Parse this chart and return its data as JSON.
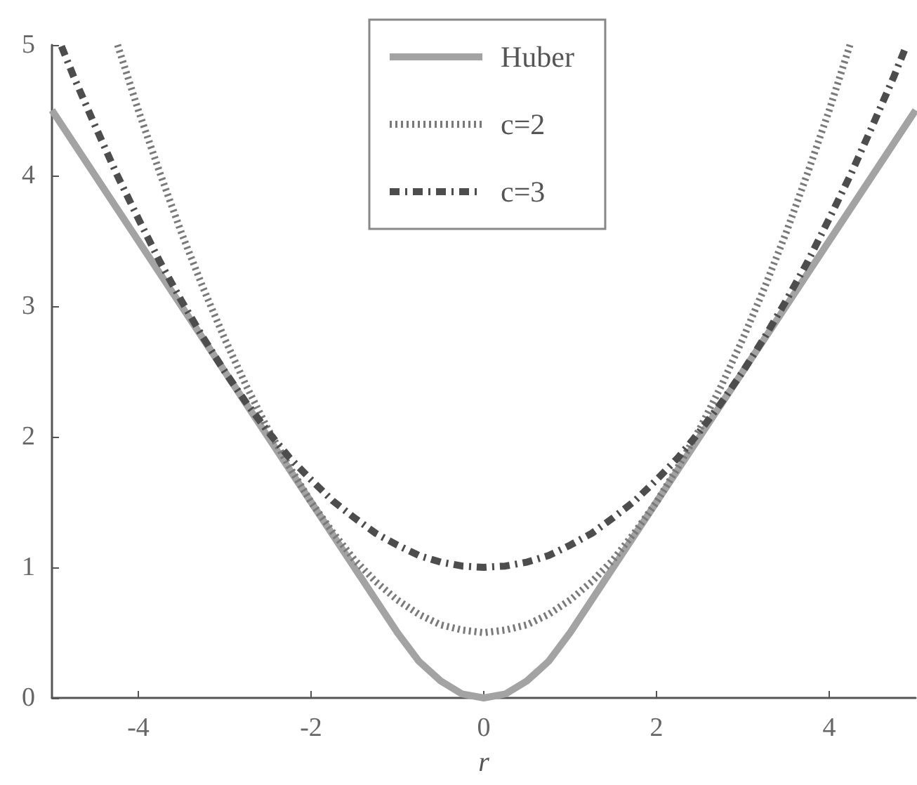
{
  "chart_data": {
    "type": "line",
    "xlabel": "r",
    "xlim": [
      -5,
      5
    ],
    "xticks": [
      -4,
      -2,
      0,
      2,
      4
    ],
    "ylim": [
      0,
      5
    ],
    "yticks": [
      0,
      1,
      2,
      3,
      4,
      5
    ],
    "legend": "top",
    "marker": "none",
    "series": [
      {
        "name": "Huber",
        "color": "#a3a3a3",
        "line_style": "solid",
        "x": [
          -5,
          -4.75,
          -4.5,
          -4.25,
          -4,
          -3.75,
          -3.5,
          -3.25,
          -3,
          -2.75,
          -2.5,
          -2.25,
          -2,
          -1.75,
          -1.5,
          -1.25,
          -1,
          -0.75,
          -0.5,
          -0.25,
          0,
          0.25,
          0.5,
          0.75,
          1,
          1.25,
          1.5,
          1.75,
          2,
          2.25,
          2.5,
          2.75,
          3,
          3.25,
          3.5,
          3.75,
          4,
          4.25,
          4.5,
          4.75,
          5
        ],
        "values": [
          4.5,
          4.25,
          4,
          3.75,
          3.5,
          3.25,
          3,
          2.75,
          2.5,
          2.25,
          2,
          1.75,
          1.5,
          1.25,
          1,
          0.75,
          0.5,
          0.28,
          0.13,
          0.03,
          0,
          0.03,
          0.13,
          0.28,
          0.5,
          0.75,
          1,
          1.25,
          1.5,
          1.75,
          2,
          2.25,
          2.5,
          2.75,
          3,
          3.25,
          3.5,
          3.75,
          4,
          4.25,
          4.5
        ]
      },
      {
        "name": "c=2",
        "color": "#7a7a7a",
        "line_style": "dotted",
        "x": [
          -4.24,
          -4,
          -3.75,
          -3.5,
          -3.25,
          -3,
          -2.75,
          -2.5,
          -2.25,
          -2,
          -1.75,
          -1.5,
          -1.25,
          -1,
          -0.75,
          -0.5,
          -0.25,
          0,
          0.25,
          0.5,
          0.75,
          1,
          1.25,
          1.5,
          1.75,
          2,
          2.25,
          2.5,
          2.75,
          3,
          3.25,
          3.5,
          3.75,
          4,
          4.24
        ],
        "values": [
          5,
          4.5,
          4.02,
          3.56,
          3.14,
          2.75,
          2.39,
          2.06,
          1.77,
          1.5,
          1.27,
          1.06,
          0.89,
          0.75,
          0.64,
          0.56,
          0.52,
          0.5,
          0.52,
          0.56,
          0.64,
          0.75,
          0.89,
          1.06,
          1.27,
          1.5,
          1.77,
          2.06,
          2.39,
          2.75,
          3.14,
          3.56,
          4.02,
          4.5,
          5
        ]
      },
      {
        "name": "c=3",
        "color": "#4d4d4d",
        "line_style": "dashdot",
        "x": [
          -4.89,
          -4.75,
          -4.5,
          -4.25,
          -4,
          -3.75,
          -3.5,
          -3.25,
          -3,
          -2.75,
          -2.5,
          -2.25,
          -2,
          -1.75,
          -1.5,
          -1.25,
          -1,
          -0.75,
          -0.5,
          -0.25,
          0,
          0.25,
          0.5,
          0.75,
          1,
          1.25,
          1.5,
          1.75,
          2,
          2.25,
          2.5,
          2.75,
          3,
          3.25,
          3.5,
          3.75,
          4,
          4.25,
          4.5,
          4.75,
          4.89
        ],
        "values": [
          4.99,
          4.76,
          4.38,
          4.01,
          3.67,
          3.34,
          3.04,
          2.76,
          2.5,
          2.26,
          2.04,
          1.84,
          1.67,
          1.51,
          1.38,
          1.26,
          1.17,
          1.09,
          1.04,
          1.01,
          1,
          1.01,
          1.04,
          1.09,
          1.17,
          1.26,
          1.38,
          1.51,
          1.67,
          1.84,
          2.04,
          2.26,
          2.5,
          2.76,
          3.04,
          3.34,
          3.67,
          4.01,
          4.38,
          4.76,
          4.99
        ]
      }
    ]
  }
}
